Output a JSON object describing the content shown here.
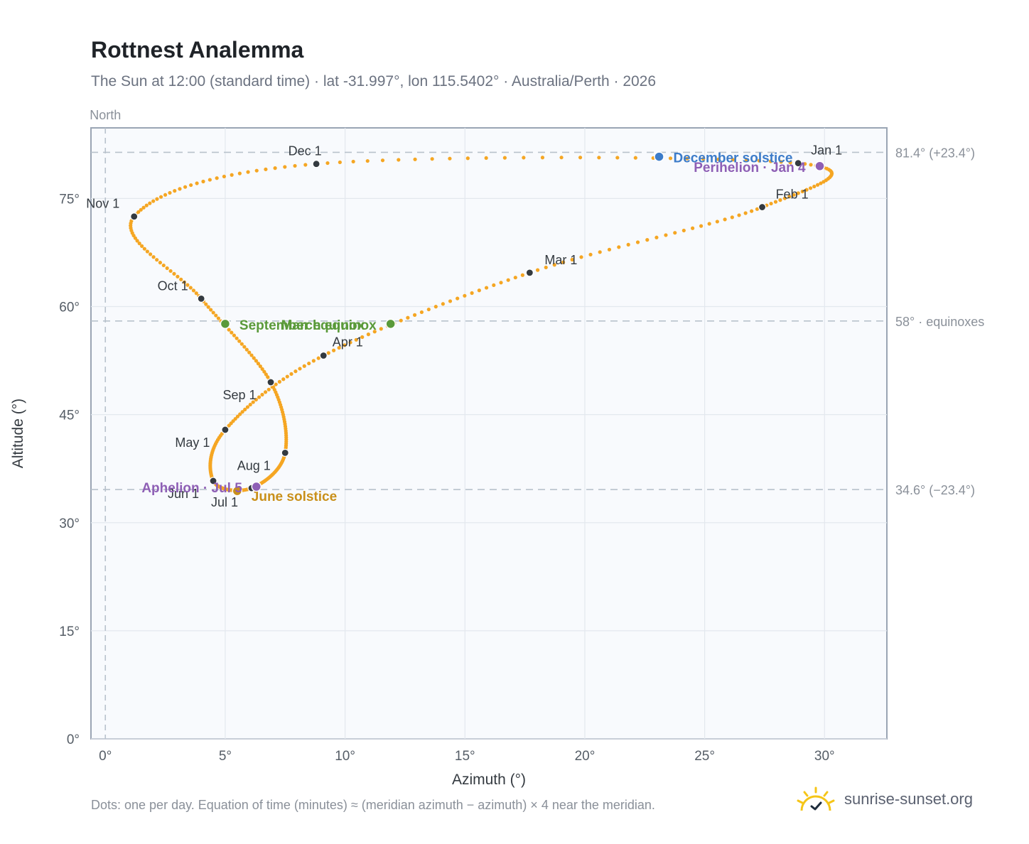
{
  "header": {
    "title": "Rottnest Analemma",
    "subtitle": "The Sun at 12:00 (standard time) · lat -31.997°, lon 115.5402° · Australia/Perth · 2026"
  },
  "footer": {
    "note": "Dots: one per day. Equation of time (minutes) ≈ (meridian azimuth − azimuth) × 4 near the meridian.",
    "brand": "sunrise-sunset.org",
    "brand_icon": "sun-logo-icon"
  },
  "chart_data": {
    "type": "scatter",
    "xlabel": "Azimuth (°)",
    "ylabel": "Altitude (°)",
    "xlim": [
      -0.6,
      32.6
    ],
    "ylim": [
      0,
      84.8
    ],
    "xticks": [
      0,
      5,
      10,
      15,
      20,
      25,
      30
    ],
    "yticks": [
      0,
      15,
      30,
      45,
      60,
      75
    ],
    "xtick_labels": [
      "0°",
      "5°",
      "10°",
      "15°",
      "20°",
      "25°",
      "30°"
    ],
    "ytick_labels": [
      "0°",
      "15°",
      "30°",
      "45°",
      "60°",
      "75°"
    ],
    "grid": true,
    "north_marker": {
      "x": 0,
      "label": "North"
    },
    "reference_lines": [
      {
        "y": 81.4,
        "label": "81.4° (+23.4°)"
      },
      {
        "y": 58,
        "label": "58° · equinoxes"
      },
      {
        "y": 34.6,
        "label": "34.6° (−23.4°)"
      }
    ],
    "colors": {
      "path": "#f5a623",
      "month_marker": "#343a40",
      "equinox": "#5a9a3a",
      "december_solstice": "#3d7cc9",
      "june_solstice": "#c9901a",
      "apsides": "#8e5fb5",
      "reference": "#b8c2cc",
      "plot_bg": "#f8fafd",
      "frame": "#9aa5b4"
    },
    "month_markers": [
      {
        "label": "Jan 1",
        "x": 28.9,
        "y": 79.9
      },
      {
        "label": "Feb 1",
        "x": 27.4,
        "y": 73.8
      },
      {
        "label": "Mar 1",
        "x": 17.7,
        "y": 64.7
      },
      {
        "label": "Apr 1",
        "x": 9.1,
        "y": 53.2
      },
      {
        "label": "May 1",
        "x": 5.0,
        "y": 42.9
      },
      {
        "label": "Jun 1",
        "x": 4.5,
        "y": 35.8
      },
      {
        "label": "Jul 1",
        "x": 6.1,
        "y": 34.8
      },
      {
        "label": "Aug 1",
        "x": 7.5,
        "y": 39.7
      },
      {
        "label": "Sep 1",
        "x": 6.9,
        "y": 49.5
      },
      {
        "label": "Oct 1",
        "x": 4.0,
        "y": 61.1
      },
      {
        "label": "Nov 1",
        "x": 1.2,
        "y": 72.5
      },
      {
        "label": "Dec 1",
        "x": 8.8,
        "y": 79.8
      }
    ],
    "events": [
      {
        "label": "March equinox",
        "x": 11.9,
        "y": 57.6,
        "kind": "equinox"
      },
      {
        "label": "September equinox",
        "x": 5.0,
        "y": 57.6,
        "kind": "equinox"
      },
      {
        "label": "December solstice",
        "x": 23.1,
        "y": 80.8,
        "kind": "december_solstice"
      },
      {
        "label": "June solstice",
        "x": 5.5,
        "y": 34.4,
        "kind": "june_solstice"
      },
      {
        "label": "Perihelion · Jan 4",
        "x": 29.8,
        "y": 79.5,
        "kind": "apsides"
      },
      {
        "label": "Aphelion · Jul 5",
        "x": 6.3,
        "y": 35.0,
        "kind": "apsides"
      }
    ]
  }
}
